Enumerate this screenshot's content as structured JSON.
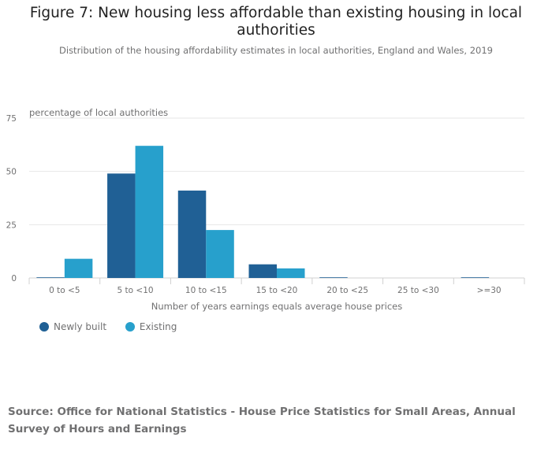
{
  "header": {
    "title_line1": "Figure 7: New housing less affordable than existing housing in local",
    "title_line2": "authorities",
    "subtitle": "Distribution of the housing affordability estimates in local authorities, England and Wales, 2019"
  },
  "chart_data": {
    "type": "bar",
    "title": "Figure 7: New housing less affordable than existing housing in local authorities",
    "subtitle": "Distribution of the housing affordability estimates in local authorities, England and Wales, 2019",
    "ylabel": "percentage of local authorities",
    "xlabel": "Number of years earnings equals average house prices",
    "ylim": [
      0,
      75
    ],
    "yticks": [
      0,
      25,
      50,
      75
    ],
    "categories": [
      "0 to <5",
      "5 to <10",
      "10 to <15",
      "15 to <20",
      "20 to <25",
      "25 to <30",
      ">=30"
    ],
    "series": [
      {
        "name": "Newly built",
        "color": "#206095",
        "values": [
          0.3,
          49,
          41,
          6.4,
          0.3,
          0,
          0.3
        ]
      },
      {
        "name": "Existing",
        "color": "#27a0cc",
        "values": [
          9,
          62,
          22.5,
          4.5,
          0,
          0,
          0
        ]
      }
    ],
    "legend": "bottom-left",
    "grid": true
  },
  "source": "Source: Office for National Statistics - House Price Statistics for Small Areas, Annual Survey of Hours and Earnings"
}
